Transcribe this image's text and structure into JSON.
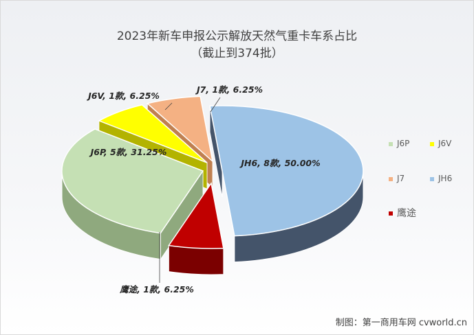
{
  "chart_data": {
    "type": "pie",
    "title": "2023年新车申报公示解放天然气重卡车系占比",
    "subtitle": "（截止到374批）",
    "slices": [
      {
        "name": "JH6",
        "count": 8,
        "percent": 50.0,
        "label": "JH6, 8款, 50.00%",
        "color": "#9dc3e6",
        "side": "#44546a"
      },
      {
        "name": "鹰途",
        "count": 1,
        "percent": 6.25,
        "label": "鹰途, 1款, 6.25%",
        "color": "#c00000",
        "side": "#7b0000"
      },
      {
        "name": "J6P",
        "count": 5,
        "percent": 31.25,
        "label": "J6P, 5款, 31.25%",
        "color": "#c5e0b4",
        "side": "#8fa97e"
      },
      {
        "name": "J6V",
        "count": 1,
        "percent": 6.25,
        "label": "J6V, 1款, 6.25%",
        "color": "#ffff00",
        "side": "#b3b300"
      },
      {
        "name": "J7",
        "count": 1,
        "percent": 6.25,
        "label": "J7, 1款, 6.25%",
        "color": "#f4b183",
        "side": "#c08050"
      }
    ],
    "legend_position": "right",
    "legend": [
      "J6P",
      "J6V",
      "J7",
      "JH6",
      "鹰途"
    ]
  },
  "credit": "制图：第一商用车网 cvworld.cn"
}
